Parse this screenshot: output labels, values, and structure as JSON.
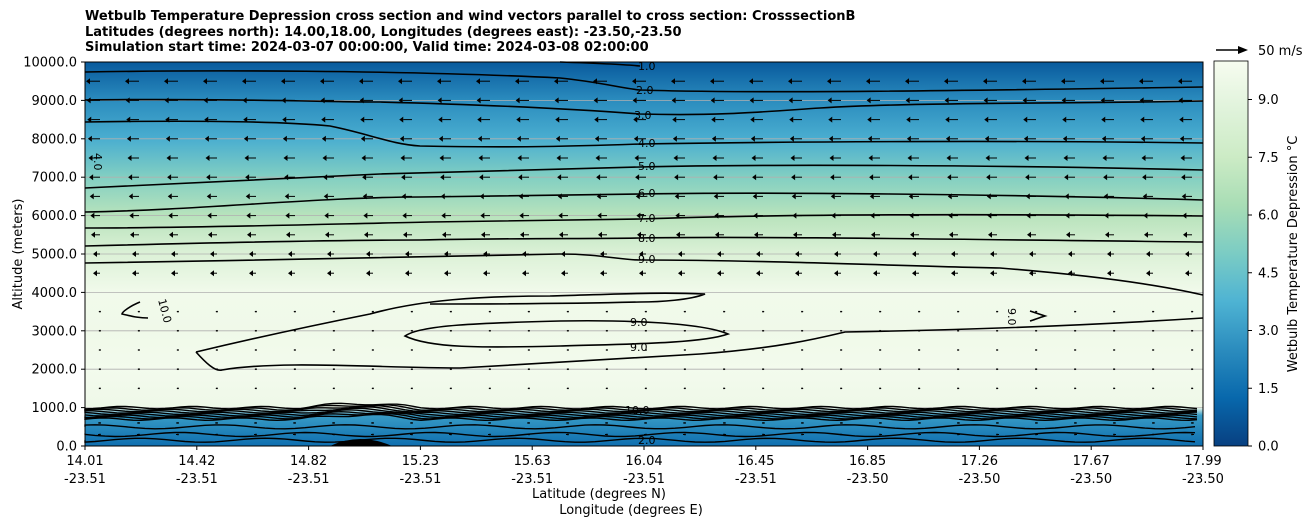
{
  "title_lines": [
    "Wetbulb Temperature Depression cross section and wind vectors parallel to cross section: CrosssectionB",
    "Latitudes (degrees north): 14.00,18.00, Longitudes (degrees east): -23.50,-23.50",
    "Simulation start time: 2024-03-07 00:00:00, Valid time: 2024-03-08 02:00:00"
  ],
  "chart_data": {
    "type": "filled-contour cross section with contour lines and wind vectors",
    "ylabel": "Altitude (meters)",
    "xlabel_lat": "Latitude (degrees N)",
    "xlabel_lon": "Longitude (degrees E)",
    "ylim": [
      0,
      10000
    ],
    "y_ticks": [
      "0.0",
      "1000.0",
      "2000.0",
      "3000.0",
      "4000.0",
      "5000.0",
      "6000.0",
      "7000.0",
      "8000.0",
      "9000.0",
      "10000.0"
    ],
    "x_ticks": [
      {
        "lat": "14.01",
        "lon": "-23.51"
      },
      {
        "lat": "14.42",
        "lon": "-23.51"
      },
      {
        "lat": "14.82",
        "lon": "-23.51"
      },
      {
        "lat": "15.23",
        "lon": "-23.51"
      },
      {
        "lat": "15.63",
        "lon": "-23.51"
      },
      {
        "lat": "16.04",
        "lon": "-23.51"
      },
      {
        "lat": "16.45",
        "lon": "-23.51"
      },
      {
        "lat": "16.85",
        "lon": "-23.50"
      },
      {
        "lat": "17.26",
        "lon": "-23.50"
      },
      {
        "lat": "17.67",
        "lon": "-23.50"
      },
      {
        "lat": "17.99",
        "lon": "-23.50"
      }
    ],
    "contour_labels": [
      "1.0",
      "2.0",
      "3.0",
      "4.0",
      "5.0",
      "6.0",
      "7.0",
      "8.0",
      "9.0",
      "4.0",
      "10.0",
      "9.0",
      "9.0",
      "9.0",
      "10.0",
      "2.0"
    ],
    "depression_profile": [
      {
        "altitude": 0,
        "value": 1.5
      },
      {
        "altitude": 300,
        "value": 2.0
      },
      {
        "altitude": 800,
        "value": 3.0
      },
      {
        "altitude": 1000,
        "value": 9.5
      },
      {
        "altitude": 2000,
        "value": 9.8
      },
      {
        "altitude": 3000,
        "value": 9.6
      },
      {
        "altitude": 4000,
        "value": 9.7
      },
      {
        "altitude": 5000,
        "value": 8.5
      },
      {
        "altitude": 6000,
        "value": 6.8
      },
      {
        "altitude": 7000,
        "value": 5.2
      },
      {
        "altitude": 8000,
        "value": 3.6
      },
      {
        "altitude": 9000,
        "value": 2.5
      },
      {
        "altitude": 10000,
        "value": 0.8
      }
    ],
    "colorbar": {
      "label": "Wetbulb Temperature Depression °C",
      "range": [
        0,
        10
      ],
      "ticks": [
        "0.0",
        "1.5",
        "3.0",
        "4.5",
        "6.0",
        "7.5",
        "9.0"
      ],
      "colors": [
        "#084081",
        "#0868ac",
        "#2b8cbe",
        "#4eb3d3",
        "#7bccc4",
        "#a8ddb5",
        "#ccebc5",
        "#e0f3db",
        "#f7fcf0"
      ]
    },
    "vector_key_label": "50 m/s",
    "wind_direction": "leftward (southward) aloft, near calm in mid levels"
  }
}
